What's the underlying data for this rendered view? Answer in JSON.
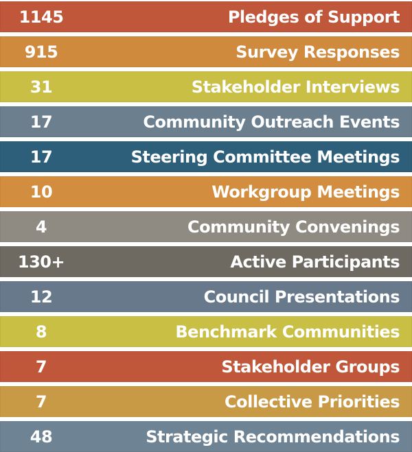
{
  "rows": [
    {
      "value": "1145",
      "label": "Pledges of Support",
      "color": "#C0573A"
    },
    {
      "value": "915",
      "label": "Survey Responses",
      "color": "#CF8A3E"
    },
    {
      "value": "31",
      "label": "Stakeholder Interviews",
      "color": "#C9BF45"
    },
    {
      "value": "17",
      "label": "Community Outreach Events",
      "color": "#6B7F8E"
    },
    {
      "value": "17",
      "label": "Steering Committee Meetings",
      "color": "#2E5F7A"
    },
    {
      "value": "10",
      "label": "Workgroup Meetings",
      "color": "#D38D3F"
    },
    {
      "value": "4",
      "label": "Community Convenings",
      "color": "#8F8A82"
    },
    {
      "value": "130+",
      "label": "Active Participants",
      "color": "#6E6A62"
    },
    {
      "value": "12",
      "label": "Council Presentations",
      "color": "#67798A"
    },
    {
      "value": "8",
      "label": "Benchmark Communities",
      "color": "#C9BF45"
    },
    {
      "value": "7",
      "label": "Stakeholder Groups",
      "color": "#C0573A"
    },
    {
      "value": "7",
      "label": "Collective Priorities",
      "color": "#C89A45"
    },
    {
      "value": "48",
      "label": "Strategic Recommendations",
      "color": "#6E8393"
    }
  ]
}
